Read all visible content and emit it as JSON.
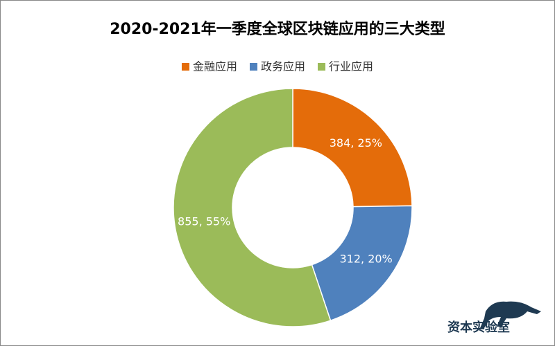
{
  "chart_data": {
    "type": "donut",
    "title": "2020-2021年一季度全球区块链应用的三大类型",
    "categories": [
      "金融应用",
      "政务应用",
      "行业应用"
    ],
    "values": [
      384,
      312,
      855
    ],
    "value_labels": [
      "384, 25%",
      "312, 20%",
      "855, 55%"
    ],
    "colors": [
      "#e46c0a",
      "#4f81bd",
      "#9bbb59"
    ],
    "legend": "top"
  },
  "watermark": "资本实验室"
}
